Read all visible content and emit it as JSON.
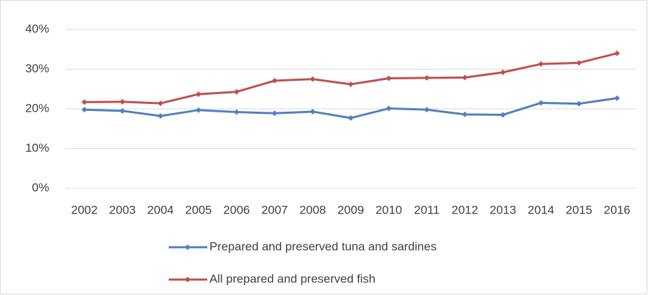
{
  "chart_data": {
    "type": "line",
    "categories": [
      "2002",
      "2003",
      "2004",
      "2005",
      "2006",
      "2007",
      "2008",
      "2009",
      "2010",
      "2011",
      "2012",
      "2013",
      "2014",
      "2015",
      "2016"
    ],
    "series": [
      {
        "name": "Prepared and preserved tuna and sardines",
        "color": "#4f81bd",
        "values": [
          19.8,
          19.5,
          18.2,
          19.7,
          19.2,
          18.9,
          19.3,
          17.7,
          20.1,
          19.8,
          18.6,
          18.5,
          21.5,
          21.3,
          22.7
        ]
      },
      {
        "name": "All prepared and preserved fish",
        "color": "#c0504d",
        "values": [
          21.7,
          21.8,
          21.4,
          23.7,
          24.3,
          27.1,
          27.5,
          26.2,
          27.7,
          27.8,
          27.9,
          29.2,
          31.3,
          31.6,
          34.0
        ]
      }
    ],
    "ylim": [
      0,
      40
    ],
    "yticks": [
      {
        "value": 0,
        "label": "0%"
      },
      {
        "value": 10,
        "label": "10%"
      },
      {
        "value": 20,
        "label": "20%"
      },
      {
        "value": 30,
        "label": "30%"
      },
      {
        "value": 40,
        "label": "40%"
      }
    ],
    "grid": true,
    "legend": "bottom"
  }
}
